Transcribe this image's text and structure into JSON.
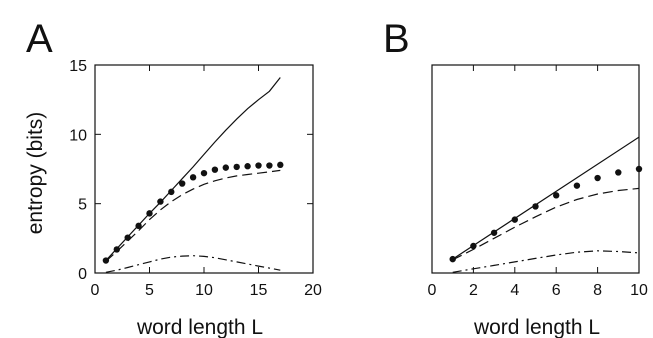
{
  "chart_data": [
    {
      "panel": "A",
      "type": "line",
      "xlabel": "word length L",
      "ylabel": "entropy (bits)",
      "xlim": [
        0,
        20
      ],
      "ylim": [
        0,
        15
      ],
      "xticks": [
        0,
        5,
        10,
        15,
        20
      ],
      "yticks": [
        0,
        5,
        10,
        15
      ],
      "grid": false,
      "series": [
        {
          "style": "solid",
          "x": [
            1,
            2,
            3,
            4,
            5,
            6,
            7,
            8,
            9,
            10,
            11,
            12,
            13,
            14,
            15,
            16,
            17
          ],
          "y": [
            0.9,
            1.75,
            2.6,
            3.45,
            4.3,
            5.1,
            5.95,
            6.8,
            7.65,
            8.55,
            9.45,
            10.3,
            11.1,
            11.85,
            12.5,
            13.1,
            14.1
          ]
        },
        {
          "style": "markers",
          "x": [
            1,
            2,
            3,
            4,
            5,
            6,
            7,
            8,
            9,
            10,
            11,
            12,
            13,
            14,
            15,
            16,
            17
          ],
          "y": [
            0.9,
            1.7,
            2.55,
            3.4,
            4.3,
            5.15,
            5.85,
            6.45,
            6.9,
            7.2,
            7.45,
            7.6,
            7.65,
            7.7,
            7.75,
            7.75,
            7.8
          ]
        },
        {
          "style": "dashed",
          "x": [
            1,
            2,
            3,
            4,
            5,
            6,
            7,
            8,
            9,
            10,
            11,
            12,
            13,
            14,
            15,
            16,
            17
          ],
          "y": [
            0.85,
            1.55,
            2.3,
            3.05,
            3.85,
            4.55,
            5.15,
            5.65,
            6.05,
            6.4,
            6.65,
            6.85,
            7.0,
            7.1,
            7.2,
            7.3,
            7.4
          ]
        },
        {
          "style": "dash-dot",
          "x": [
            1,
            2,
            3,
            4,
            5,
            6,
            7,
            8,
            9,
            10,
            11,
            12,
            13,
            14,
            15,
            16,
            17
          ],
          "y": [
            0.05,
            0.2,
            0.4,
            0.6,
            0.8,
            1.0,
            1.15,
            1.22,
            1.25,
            1.2,
            1.1,
            0.95,
            0.8,
            0.65,
            0.5,
            0.35,
            0.2
          ]
        }
      ]
    },
    {
      "panel": "B",
      "type": "line",
      "xlabel": "word length L",
      "ylabel": "",
      "xlim": [
        0,
        10
      ],
      "ylim": [
        0,
        15
      ],
      "xticks": [
        0,
        2,
        4,
        6,
        8,
        10
      ],
      "grid": false,
      "series": [
        {
          "style": "solid",
          "x": [
            1,
            10
          ],
          "y": [
            1.0,
            9.8
          ]
        },
        {
          "style": "markers",
          "x": [
            1,
            2,
            3,
            4,
            5,
            6,
            7,
            8,
            9,
            10
          ],
          "y": [
            1.0,
            1.95,
            2.9,
            3.85,
            4.8,
            5.6,
            6.3,
            6.85,
            7.25,
            7.5
          ]
        },
        {
          "style": "dashed",
          "x": [
            1,
            2,
            3,
            4,
            5,
            6,
            7,
            8,
            9,
            10
          ],
          "y": [
            0.95,
            1.7,
            2.5,
            3.3,
            4.05,
            4.75,
            5.3,
            5.7,
            5.95,
            6.1
          ]
        },
        {
          "style": "dash-dot",
          "x": [
            1,
            2,
            3,
            4,
            5,
            6,
            7,
            8,
            9,
            10
          ],
          "y": [
            0.05,
            0.3,
            0.55,
            0.8,
            1.05,
            1.3,
            1.5,
            1.6,
            1.55,
            1.45
          ]
        }
      ]
    }
  ]
}
